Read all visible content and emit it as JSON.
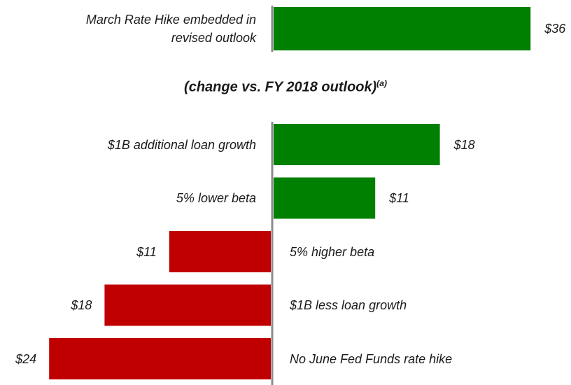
{
  "chart_data": [
    {
      "type": "bar",
      "orientation": "horizontal",
      "categories": [
        "March Rate Hike embedded in revised outlook"
      ],
      "values": [
        36
      ],
      "value_labels": [
        "$36"
      ],
      "positive_color": "#008000",
      "negative_color": "#c00000"
    },
    {
      "type": "bar",
      "orientation": "horizontal",
      "subtitle": "(change vs. FY 2018 outlook)",
      "subtitle_note": "(a)",
      "categories": [
        "$1B additional loan growth",
        "5% lower beta",
        "5% higher beta",
        "$1B less loan growth",
        "No June Fed Funds rate hike"
      ],
      "values": [
        18,
        11,
        -11,
        -18,
        -24
      ],
      "value_labels": [
        "$18",
        "$11",
        "$11",
        "$18",
        "$24"
      ],
      "positive_color": "#008000",
      "negative_color": "#c00000"
    }
  ]
}
